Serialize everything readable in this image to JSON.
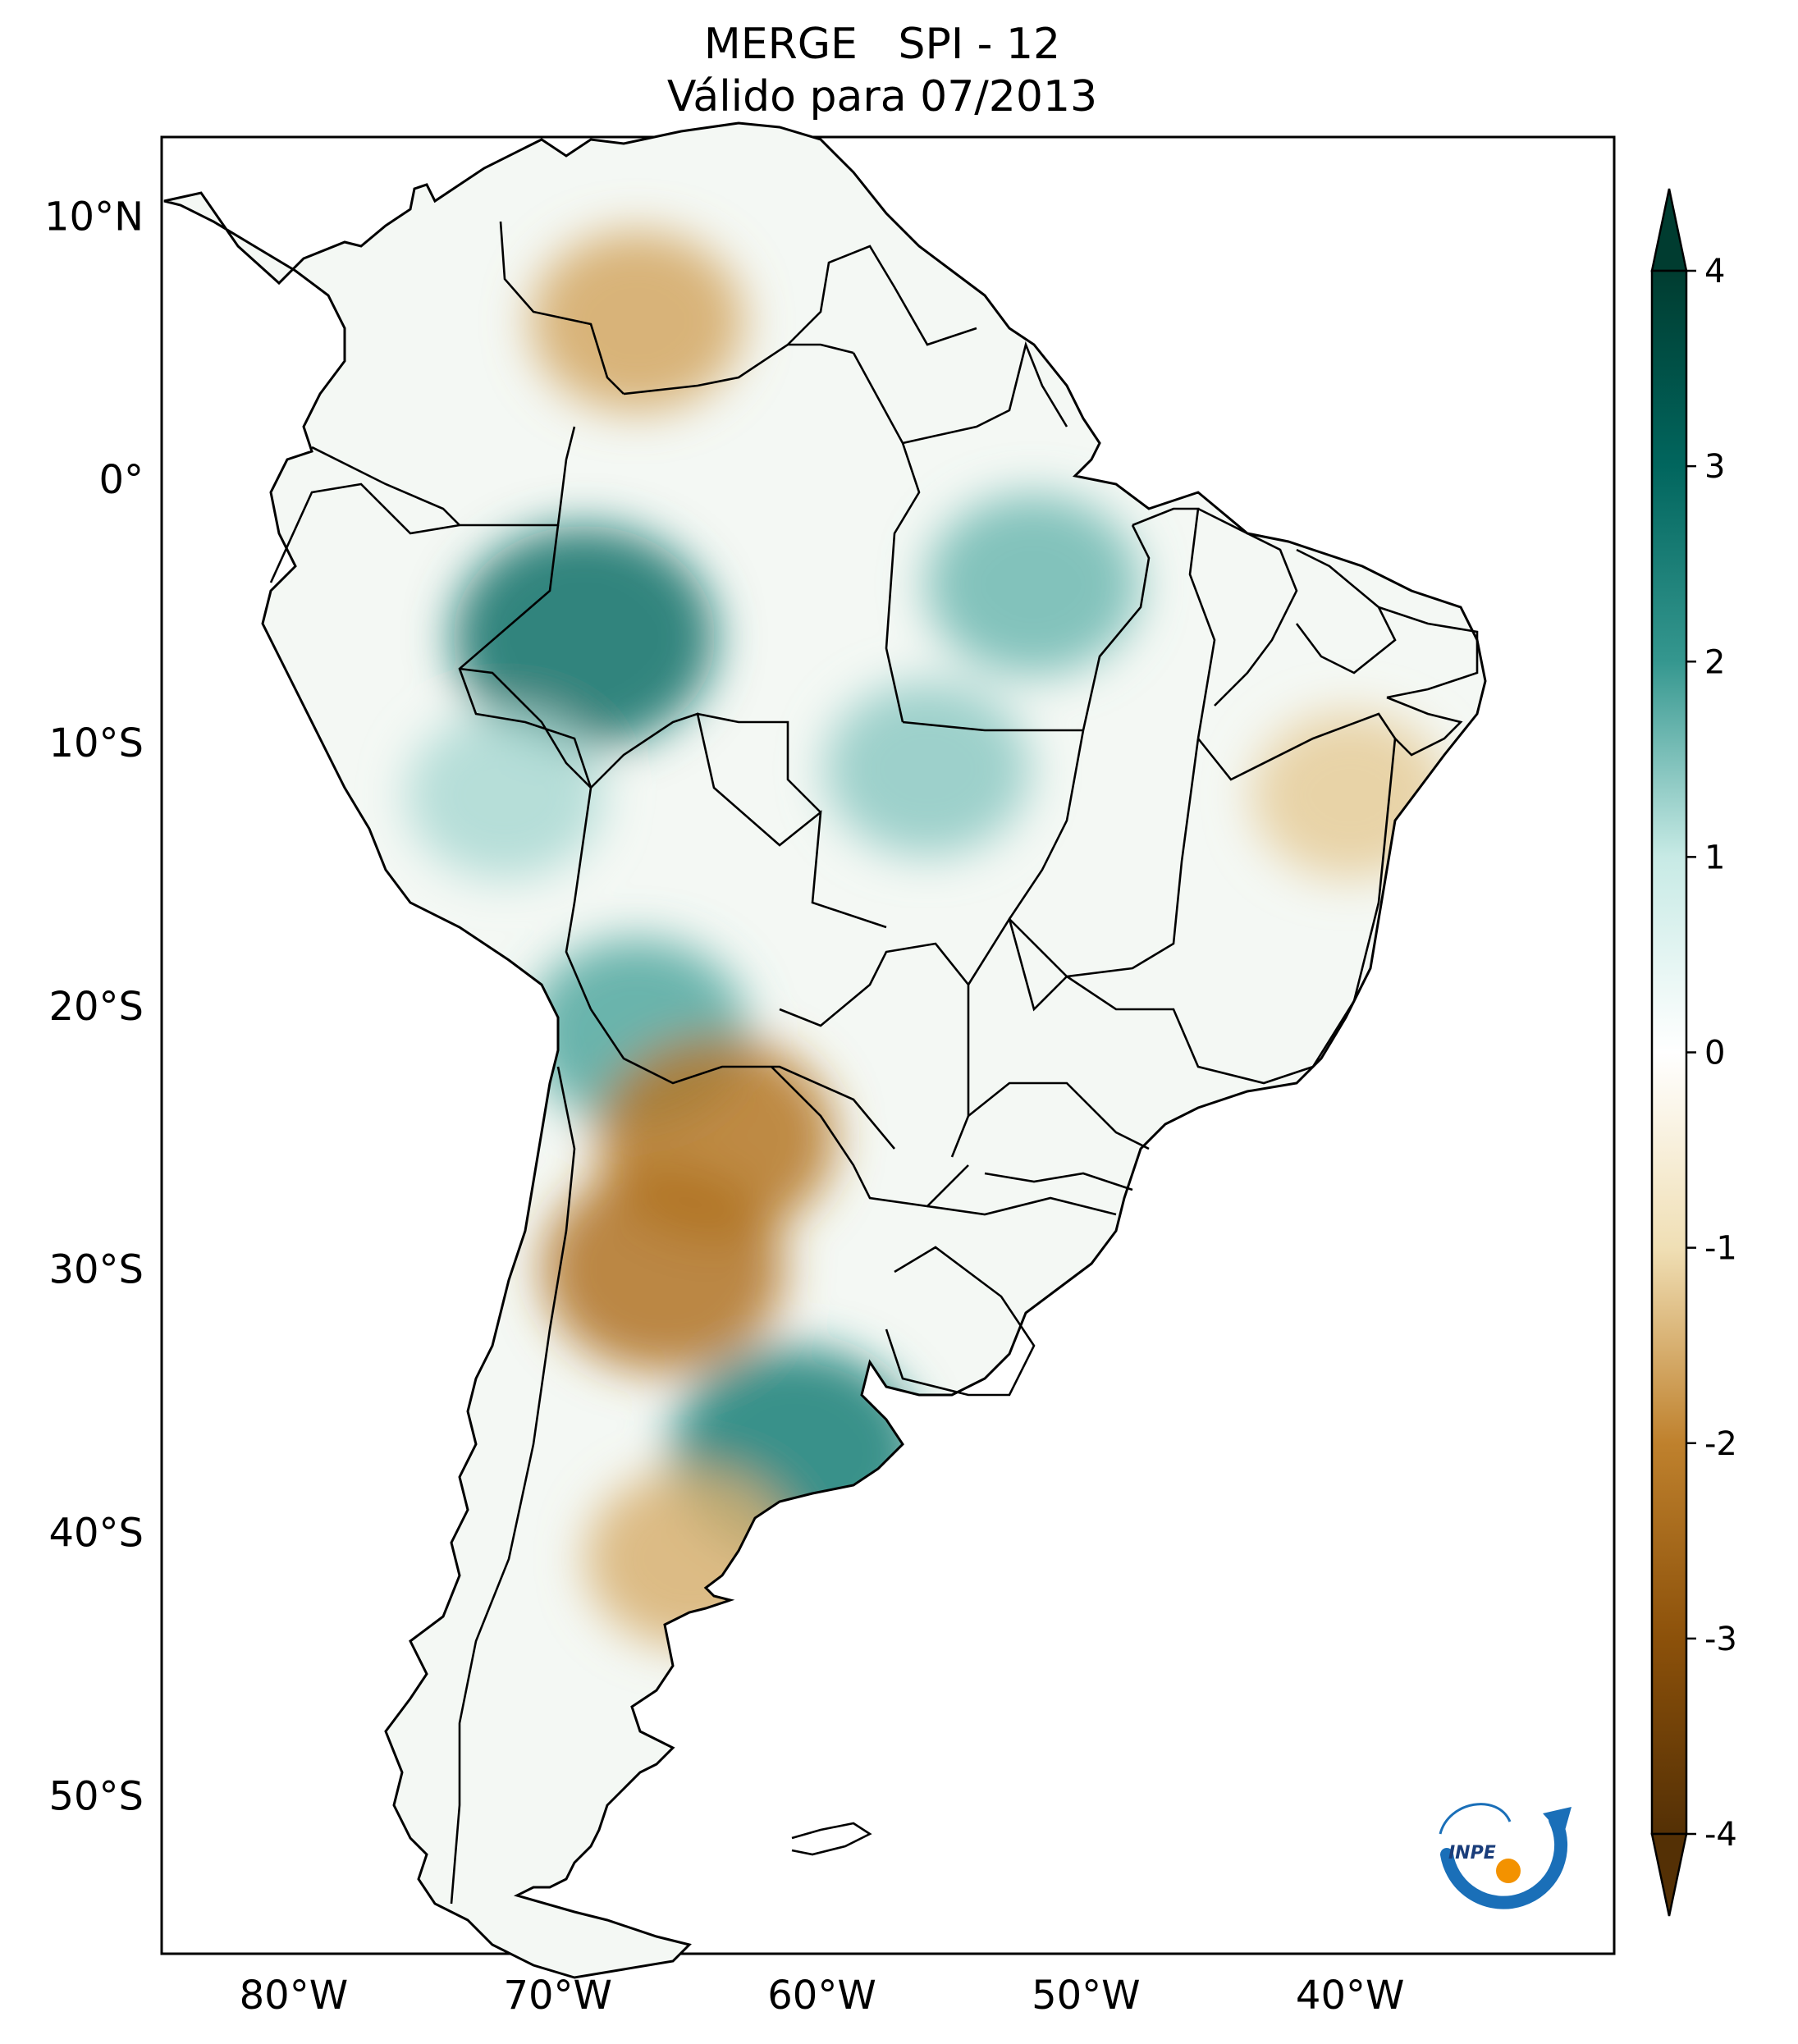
{
  "title": {
    "line1": "MERGE   SPI - 12",
    "line2": "Válido para 07/2013"
  },
  "map": {
    "type": "choropleth-map",
    "region": "South America",
    "variable": "SPI - 12",
    "lon_range": [
      -85,
      -30
    ],
    "lat_range": [
      -56,
      13
    ],
    "lon_ticks": [
      {
        "value": -80,
        "label": "80°W"
      },
      {
        "value": -70,
        "label": "70°W"
      },
      {
        "value": -60,
        "label": "60°W"
      },
      {
        "value": -50,
        "label": "50°W"
      },
      {
        "value": -40,
        "label": "40°W"
      }
    ],
    "lat_ticks": [
      {
        "value": 10,
        "label": "10°N"
      },
      {
        "value": 0,
        "label": "0°"
      },
      {
        "value": -10,
        "label": "10°S"
      },
      {
        "value": -20,
        "label": "20°S"
      },
      {
        "value": -30,
        "label": "30°S"
      },
      {
        "value": -40,
        "label": "40°S"
      },
      {
        "value": -50,
        "label": "50°S"
      }
    ],
    "regions": [
      {
        "name": "Colombia-Venezuela dry zone",
        "lon": -67,
        "lat": 6,
        "value": -1.6
      },
      {
        "name": "Western Amazon wet zone",
        "lon": -69,
        "lat": -6,
        "value": 2.8
      },
      {
        "name": "Peru wet zone",
        "lon": -72,
        "lat": -12,
        "value": 1.2
      },
      {
        "name": "Bolivia-Chaco wet zone",
        "lon": -67,
        "lat": -21,
        "value": 1.8
      },
      {
        "name": "Northern Argentina dry zone",
        "lon": -64,
        "lat": -25,
        "value": -2.2
      },
      {
        "name": "Central Argentina dry zone",
        "lon": -66,
        "lat": -30,
        "value": -2.3
      },
      {
        "name": "Buenos Aires wet zone",
        "lon": -61,
        "lat": -37,
        "value": 2.5
      },
      {
        "name": "Patagonia dry zone",
        "lon": -65,
        "lat": -41,
        "value": -1.5
      },
      {
        "name": "Northeast Brazil dry zone",
        "lon": -40,
        "lat": -12,
        "value": -1.2
      },
      {
        "name": "Pará wet zone",
        "lon": -52,
        "lat": -4,
        "value": 1.6
      },
      {
        "name": "Mato Grosso wet zone",
        "lon": -56,
        "lat": -11,
        "value": 1.4
      }
    ]
  },
  "colorbar": {
    "vmin": -4,
    "vmax": 4,
    "extend": "both",
    "colormap": "BrBG",
    "ticks": [
      {
        "value": 4,
        "label": "4"
      },
      {
        "value": 3,
        "label": "3"
      },
      {
        "value": 2,
        "label": "2"
      },
      {
        "value": 1,
        "label": "1"
      },
      {
        "value": 0,
        "label": "0"
      },
      {
        "value": -1,
        "label": "-1"
      },
      {
        "value": -2,
        "label": "-2"
      },
      {
        "value": -3,
        "label": "-3"
      },
      {
        "value": -4,
        "label": "-4"
      }
    ],
    "colors": {
      "m4": "#543005",
      "m3": "#8c510a",
      "m2": "#bf812d",
      "m1": "#f0dfb5",
      "zero": "#ffffff",
      "p1": "#c7eae5",
      "p2": "#35978f",
      "p3": "#01665e",
      "p4": "#003c30"
    }
  },
  "logo": {
    "text": "INPE",
    "icon": "inpe-logo-icon"
  }
}
